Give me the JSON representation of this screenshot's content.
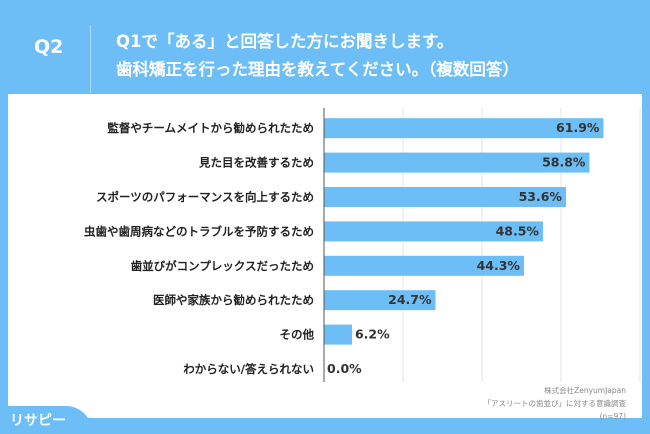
{
  "header": {
    "q": "Q2",
    "line1": "Q1で「ある」と回答した方にお聞きします。",
    "line2": "歯科矯正を行った理由を教えてください。（複数回答）"
  },
  "source": {
    "line1": "株式会社ZenyumJapan",
    "line2": "「アスリートの歯並び」に対する意識調査",
    "line3": "(n=97)"
  },
  "logo": "リサピー",
  "colors": {
    "bar": "#6dbdf6",
    "background": "#6dbdf6"
  },
  "chart_data": {
    "type": "bar",
    "orientation": "horizontal",
    "xlim": [
      0,
      70
    ],
    "categories": [
      "監督やチームメイトから勧められたため",
      "見た目を改善するため",
      "スポーツのパフォーマンスを向上するため",
      "虫歯や歯周病などのトラブルを予防するため",
      "歯並びがコンプレックスだったため",
      "医師や家族から勧められたため",
      "その他",
      "わからない/答えられない"
    ],
    "values": [
      61.9,
      58.8,
      53.6,
      48.5,
      44.3,
      24.7,
      6.2,
      0.0
    ],
    "labels": [
      "61.9%",
      "58.8%",
      "53.6%",
      "48.5%",
      "44.3%",
      "24.7%",
      "6.2%",
      "0.0%"
    ]
  }
}
